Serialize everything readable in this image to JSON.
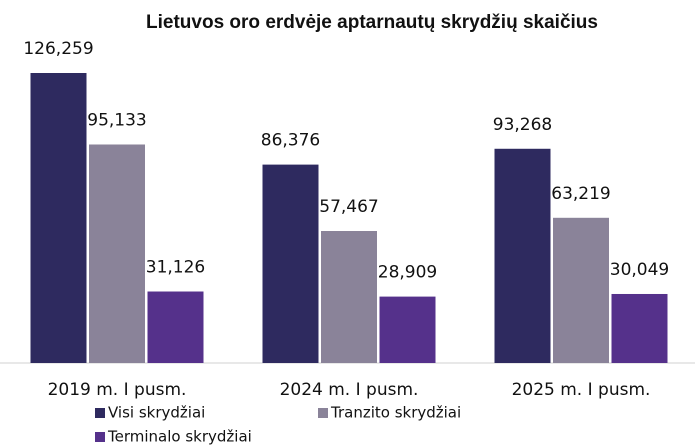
{
  "chart_data": {
    "type": "bar",
    "title": "Lietuvos oro erdvėje aptarnautų skrydžių skaičius",
    "categories": [
      "2019 m. I pusm.",
      "2024 m. I pusm.",
      "2025 m. I pusm."
    ],
    "series": [
      {
        "name": "Visi skrydžiai",
        "color": "#2e2a5f",
        "values": [
          126259,
          86376,
          93268
        ],
        "value_labels": [
          "126,259",
          "86,376",
          "93,268"
        ]
      },
      {
        "name": "Tranzito skrydžiai",
        "color": "#8a8399",
        "values": [
          95133,
          57467,
          63219
        ],
        "value_labels": [
          "95,133",
          "57,467",
          "63,219"
        ]
      },
      {
        "name": "Terminalo skrydžiai",
        "color": "#55318b",
        "values": [
          31126,
          28909,
          30049
        ],
        "value_labels": [
          "31,126",
          "28,909",
          "30,049"
        ]
      }
    ]
  }
}
